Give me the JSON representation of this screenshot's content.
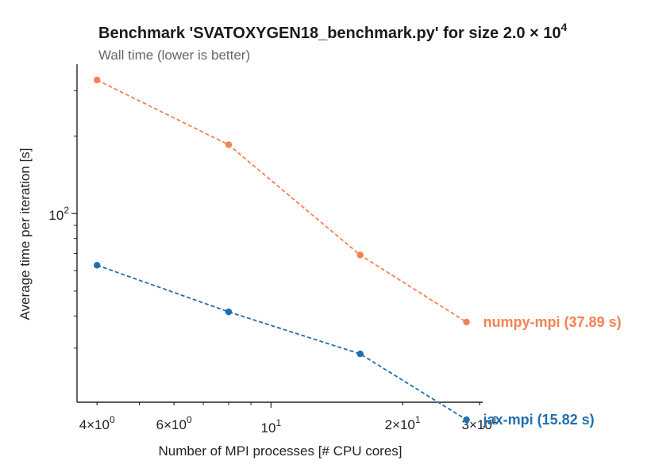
{
  "chart_data": {
    "type": "line",
    "title": "Benchmark 'SVATOXYGEN18_benchmark.py' for size 2.0 × 10",
    "title_exponent": "4",
    "subtitle": "Wall time (lower is better)",
    "xlabel": "Number of MPI processes [# CPU cores]",
    "ylabel": "Average time per iteration [s]",
    "xscale": "log",
    "yscale": "log",
    "xlim": [
      3.6,
      30.5
    ],
    "ylim": [
      18.5,
      380
    ],
    "grid": false,
    "legend": "none",
    "x_ticks": [
      {
        "value": 4,
        "mantissa": "4",
        "exponent": "0",
        "major": false
      },
      {
        "value": 6,
        "mantissa": "6",
        "exponent": "0",
        "major": false
      },
      {
        "value": 10,
        "mantissa": "",
        "exponent": "1",
        "major": true
      },
      {
        "value": 20,
        "mantissa": "2",
        "exponent": "1",
        "major": false
      },
      {
        "value": 30,
        "mantissa": "3",
        "exponent": "1",
        "major": false
      }
    ],
    "x_minor_unlabeled": [
      5,
      7,
      8,
      9
    ],
    "y_ticks": [
      {
        "value": 100,
        "mantissa": "",
        "exponent": "2",
        "major": true
      }
    ],
    "y_minor_unlabeled": [
      30,
      40,
      50,
      60,
      70,
      80,
      90,
      200,
      300
    ],
    "x": [
      4,
      8,
      16,
      28
    ],
    "series": [
      {
        "name": "numpy-mpi",
        "end_label": "numpy-mpi (37.89 s)",
        "color": "#f58152",
        "values": [
          330,
          185,
          69,
          37.89
        ]
      },
      {
        "name": "jax-mpi",
        "end_label": "jax-mpi (15.82 s)",
        "color": "#1f6fb0",
        "values": [
          63,
          41.5,
          28.5,
          15.82
        ]
      }
    ],
    "colors": {
      "axis": "#222222",
      "title": "#1a1a1a",
      "subtitle": "#666666"
    }
  }
}
